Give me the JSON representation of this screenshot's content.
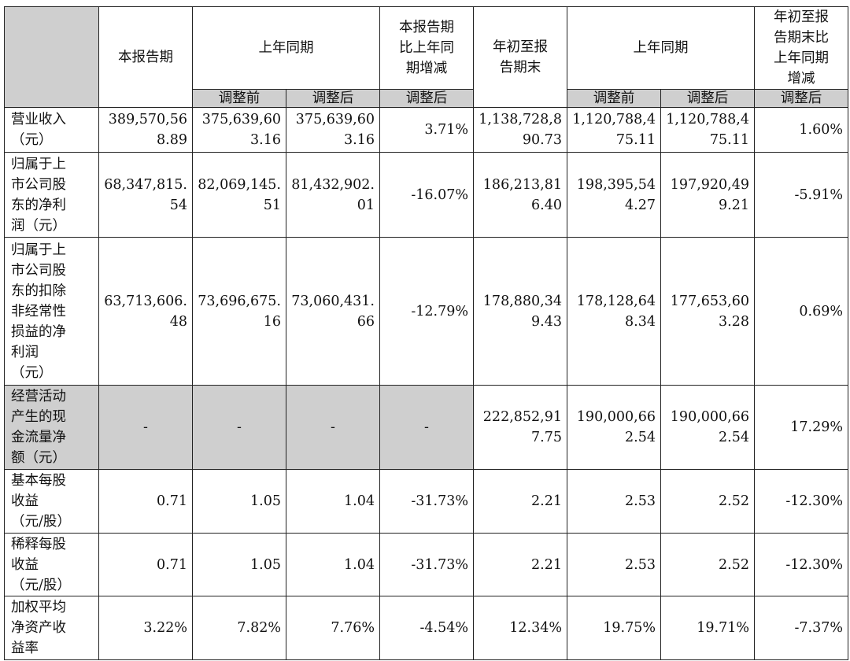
{
  "headers": {
    "current_period": "本报告期",
    "prior_year_same_period": "上年同期",
    "current_vs_prior_change": "本报告期比上年同期增减",
    "ytd_end": "年初至报告期末",
    "prior_year_same_period_2": "上年同期",
    "ytd_vs_prior_change": "年初至报告期末比上年同期增减",
    "before_adjustment": "调整前",
    "after_adjustment": "调整后",
    "after_adjustment_change": "调整后",
    "before_adjustment_2": "调整前",
    "after_adjustment_2": "调整后",
    "after_adjustment_change_2": "调整后"
  },
  "rows": [
    {
      "label": "营业收入（元）",
      "values": [
        "389,570,56\n8.89",
        "375,639,60\n3.16",
        "375,639,60\n3.16",
        "3.71%",
        "1,138,728,8\n90.73",
        "1,120,788,4\n75.11",
        "1,120,788,4\n75.11",
        "1.60%"
      ]
    },
    {
      "label": "归属于上市公司股东的净利润（元）",
      "values": [
        "68,347,815.\n54",
        "82,069,145.\n51",
        "81,432,902.\n01",
        "-16.07%",
        "186,213,81\n6.40",
        "198,395,54\n4.27",
        "197,920,49\n9.21",
        "-5.91%"
      ]
    },
    {
      "label": "归属于上市公司股东的扣除非经常性损益的净利润（元）",
      "values": [
        "63,713,606.\n48",
        "73,696,675.\n16",
        "73,060,431.\n66",
        "-12.79%",
        "178,880,34\n9.43",
        "178,128,64\n8.34",
        "177,653,60\n3.28",
        "0.69%"
      ]
    },
    {
      "label": "经营活动产生的现金流量净额（元）",
      "values": [
        "-",
        "-",
        "-",
        "-",
        "222,852,91\n7.75",
        "190,000,66\n2.54",
        "190,000,66\n2.54",
        "17.29%"
      ]
    },
    {
      "label": "基本每股收益（元/股）",
      "values": [
        "0.71",
        "1.05",
        "1.04",
        "-31.73%",
        "2.21",
        "2.53",
        "2.52",
        "-12.30%"
      ]
    },
    {
      "label": "稀释每股收益（元/股）",
      "values": [
        "0.71",
        "1.05",
        "1.04",
        "-31.73%",
        "2.21",
        "2.53",
        "2.52",
        "-12.30%"
      ]
    },
    {
      "label": "加权平均净资产收益率",
      "values": [
        "3.22%",
        "7.82%",
        "7.76%",
        "-4.54%",
        "12.34%",
        "19.75%",
        "19.71%",
        "-7.37%"
      ]
    }
  ]
}
